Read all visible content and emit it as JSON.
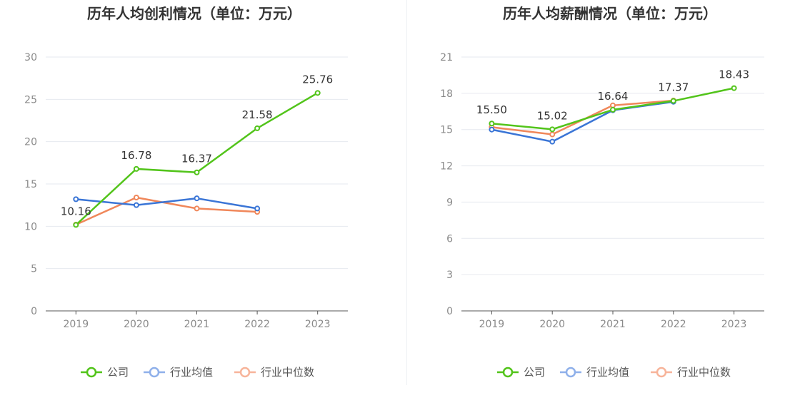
{
  "chart_data": [
    {
      "type": "line",
      "title": "历年人均创利情况（单位：万元）",
      "categories": [
        "2019",
        "2020",
        "2021",
        "2022",
        "2023"
      ],
      "ylim": [
        0,
        30
      ],
      "yticks": [
        0,
        5,
        10,
        15,
        20,
        25,
        30
      ],
      "grid": true,
      "legend_position": "bottom",
      "series": [
        {
          "name": "公司",
          "color": "#52c41a",
          "values": [
            10.16,
            16.78,
            16.37,
            21.58,
            25.76
          ],
          "labels": [
            "10.16",
            "16.78",
            "16.37",
            "21.58",
            "25.76"
          ]
        },
        {
          "name": "行业均值",
          "color": "#3a75d6",
          "values": [
            13.2,
            12.5,
            13.3,
            12.1,
            null
          ]
        },
        {
          "name": "行业中位数",
          "color": "#f0875a",
          "values": [
            10.2,
            13.4,
            12.1,
            11.7,
            null
          ]
        }
      ]
    },
    {
      "type": "line",
      "title": "历年人均薪酬情况（单位：万元）",
      "categories": [
        "2019",
        "2020",
        "2021",
        "2022",
        "2023"
      ],
      "ylim": [
        0,
        21
      ],
      "yticks": [
        0,
        3,
        6,
        9,
        12,
        15,
        18,
        21
      ],
      "grid": true,
      "legend_position": "bottom",
      "series": [
        {
          "name": "公司",
          "color": "#52c41a",
          "values": [
            15.5,
            15.02,
            16.64,
            17.37,
            18.43
          ],
          "labels": [
            "15.50",
            "15.02",
            "16.64",
            "17.37",
            "18.43"
          ]
        },
        {
          "name": "行业均值",
          "color": "#3a75d6",
          "values": [
            15.0,
            14.0,
            16.6,
            17.3,
            null
          ]
        },
        {
          "name": "行业中位数",
          "color": "#f0875a",
          "values": [
            15.2,
            14.6,
            17.0,
            17.4,
            null
          ]
        }
      ]
    }
  ],
  "legend_colors": {
    "公司": "#52c41a",
    "行业均值": "#8fb0ea",
    "行业中位数": "#f7b49a"
  }
}
